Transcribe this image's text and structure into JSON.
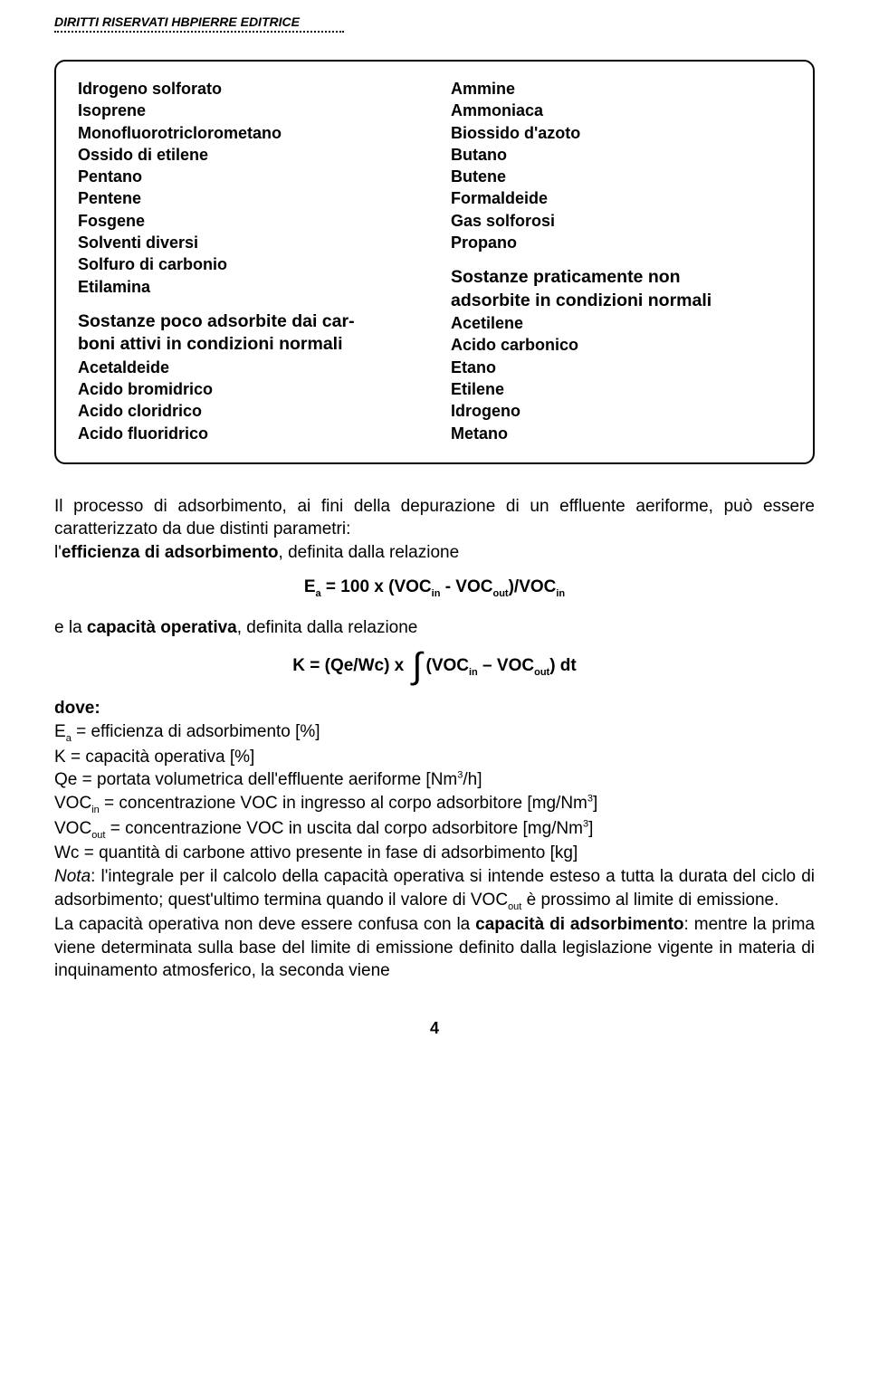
{
  "header": {
    "rights_line": "DIRITTI RISERVATI HBPIERRE EDITRICE"
  },
  "box": {
    "left": {
      "items1": [
        "Idrogeno solforato",
        "Isoprene",
        "Monofluorotriclorometano",
        "Ossido di etilene",
        "Pentano",
        "Pentene",
        "Fosgene",
        "Solventi diversi",
        "Solfuro di carbonio",
        "Etilamina"
      ],
      "heading2a": "Sostanze poco adsorbite dai car-",
      "heading2b": "boni attivi in condizioni normali",
      "items2": [
        "Acetaldeide",
        "Acido bromidrico",
        "Acido cloridrico",
        "Acido fluoridrico"
      ]
    },
    "right": {
      "items1": [
        "Ammine",
        "Ammoniaca",
        "Biossido d'azoto",
        "Butano",
        "Butene",
        "Formaldeide",
        "Gas solforosi",
        "Propano"
      ],
      "heading2a": "Sostanze praticamente non",
      "heading2b": "adsorbite in condizioni normali",
      "items2": [
        "Acetilene",
        "Acido carbonico",
        "Etano",
        "Etilene",
        "Idrogeno",
        "Metano"
      ]
    }
  },
  "body": {
    "p1a": "Il processo di adsorbimento, ai fini della depurazione di un effluente aeriforme, può essere caratterizzato da due distinti parametri:",
    "p1b_pre": "l'",
    "p1b_bold": "efficienza di adsorbimento",
    "p1b_post": ", definita dalla relazione",
    "formula1_left": "E",
    "formula1_sub": "a",
    "formula1_mid1": " = 100 x (VOC",
    "formula1_in": "in",
    "formula1_mid2": " - VOC",
    "formula1_out": "out",
    "formula1_mid3": ")/VOC",
    "formula1_in2": "in",
    "p2_pre": "e la ",
    "p2_bold": "capacità operativa",
    "p2_post": ", definita dalla relazione",
    "formula2_pre": "K = (Qe/Wc) x ",
    "formula2_mid1": "(VOC",
    "formula2_in": "in",
    "formula2_mid2": " – VOC",
    "formula2_out": "out",
    "formula2_post": ") dt",
    "defs_label": "dove:",
    "def1_sym": "E",
    "def1_sub": "a",
    "def1_txt": " = efficienza di adsorbimento [%]",
    "def2": "K = capacità operativa [%]",
    "def3_pre": "Qe = portata volumetrica dell'effluente aeriforme [Nm",
    "def3_sup": "3",
    "def3_post": "/h]",
    "def4_pre": "VOC",
    "def4_sub": "in",
    "def4_mid": " = concentrazione VOC in ingresso al corpo adsorbitore [mg/Nm",
    "def4_sup": "3",
    "def4_post": "]",
    "def5_pre": "VOC",
    "def5_sub": "out",
    "def5_mid": " = concentrazione VOC in uscita dal corpo adsorbitore [mg/Nm",
    "def5_sup": "3",
    "def5_post": "]",
    "def6": "Wc = quantità di carbone attivo presente in fase di adsorbimento [kg]",
    "note_label": "Nota",
    "note_txt1": ": l'integrale per il calcolo della capacità operativa si intende esteso a tutta la durata del ciclo di adsorbimento; quest'ultimo termina quando il valore di VOC",
    "note_sub": "out",
    "note_txt2": " è prossimo al limite di emissione.",
    "p3_pre": "La capacità operativa non deve essere confusa con la ",
    "p3_bold": "capacità di adsorbimento",
    "p3_post": ": mentre la prima viene determinata sulla base del limite di emissione definito dalla legislazione vigente in materia di inquinamento atmosferico, la seconda viene"
  },
  "page_number": "4"
}
